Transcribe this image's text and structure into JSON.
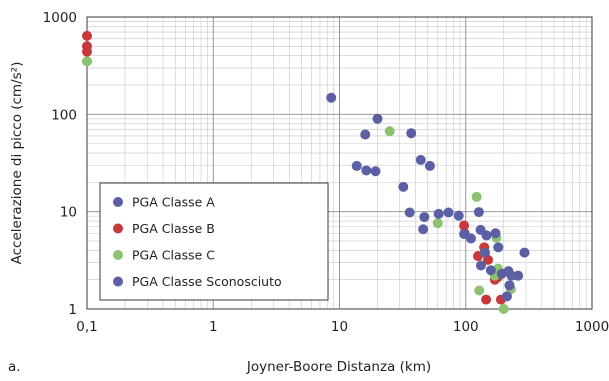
{
  "panel_label": "a.",
  "chart_data": {
    "type": "scatter",
    "xlabel": "Joyner-Boore Distanza (km)",
    "ylabel": "Accelerazione di picco (cm/s²)",
    "x_scale": "log",
    "y_scale": "log",
    "xlim": [
      0.1,
      1000
    ],
    "ylim": [
      1,
      1000
    ],
    "x_ticks": [
      {
        "value": 0.1,
        "label": "0,1"
      },
      {
        "value": 1,
        "label": "1"
      },
      {
        "value": 10,
        "label": "10"
      },
      {
        "value": 100,
        "label": "100"
      },
      {
        "value": 1000,
        "label": "1000"
      }
    ],
    "y_ticks": [
      {
        "value": 1,
        "label": "1"
      },
      {
        "value": 10,
        "label": "10"
      },
      {
        "value": 100,
        "label": "100"
      },
      {
        "value": 1000,
        "label": "1000"
      }
    ],
    "grid": true,
    "legend_position": "lower-left",
    "series": [
      {
        "name": "PGA Classe A",
        "color": "#5b5fa4",
        "points": []
      },
      {
        "name": "PGA Classe B",
        "color": "#c8383a",
        "points": [
          [
            0.1,
            640
          ],
          [
            0.1,
            500
          ],
          [
            0.1,
            440
          ],
          [
            97,
            7.2
          ],
          [
            98,
            6.0
          ],
          [
            125,
            3.5
          ],
          [
            140,
            4.3
          ],
          [
            150,
            3.2
          ],
          [
            145,
            1.25
          ],
          [
            170,
            2.0
          ],
          [
            178,
            2.1
          ],
          [
            190,
            1.25
          ]
        ]
      },
      {
        "name": "PGA Classe C",
        "color": "#8cc270",
        "points": [
          [
            0.1,
            350
          ],
          [
            25,
            67
          ],
          [
            60,
            7.6
          ],
          [
            122,
            14.2
          ],
          [
            128,
            1.55
          ],
          [
            175,
            5.4
          ],
          [
            180,
            2.6
          ],
          [
            170,
            2.2
          ],
          [
            200,
            1.0
          ],
          [
            228,
            1.6
          ]
        ]
      },
      {
        "name": "PGA Classe Sconosciuto",
        "color": "#5b5fa4",
        "points": [
          [
            8.6,
            148
          ],
          [
            20,
            90
          ],
          [
            16,
            62
          ],
          [
            37,
            64
          ],
          [
            13.7,
            29.5
          ],
          [
            16.3,
            26.5
          ],
          [
            19.3,
            26
          ],
          [
            44,
            34
          ],
          [
            52,
            29.5
          ],
          [
            32,
            18
          ],
          [
            36,
            9.8
          ],
          [
            47,
            8.8
          ],
          [
            61,
            9.5
          ],
          [
            73,
            9.8
          ],
          [
            88,
            9.1
          ],
          [
            46,
            6.6
          ],
          [
            97,
            5.9
          ],
          [
            110,
            5.3
          ],
          [
            127,
            9.9
          ],
          [
            131,
            6.5
          ],
          [
            146,
            5.7
          ],
          [
            172,
            6.0
          ],
          [
            181,
            4.3
          ],
          [
            142,
            3.8
          ],
          [
            132,
            2.8
          ],
          [
            158,
            2.5
          ],
          [
            193,
            2.3
          ],
          [
            218,
            2.45
          ],
          [
            230,
            2.2
          ],
          [
            260,
            2.2
          ],
          [
            292,
            3.8
          ],
          [
            222,
            1.75
          ],
          [
            212,
            1.35
          ]
        ]
      }
    ]
  }
}
